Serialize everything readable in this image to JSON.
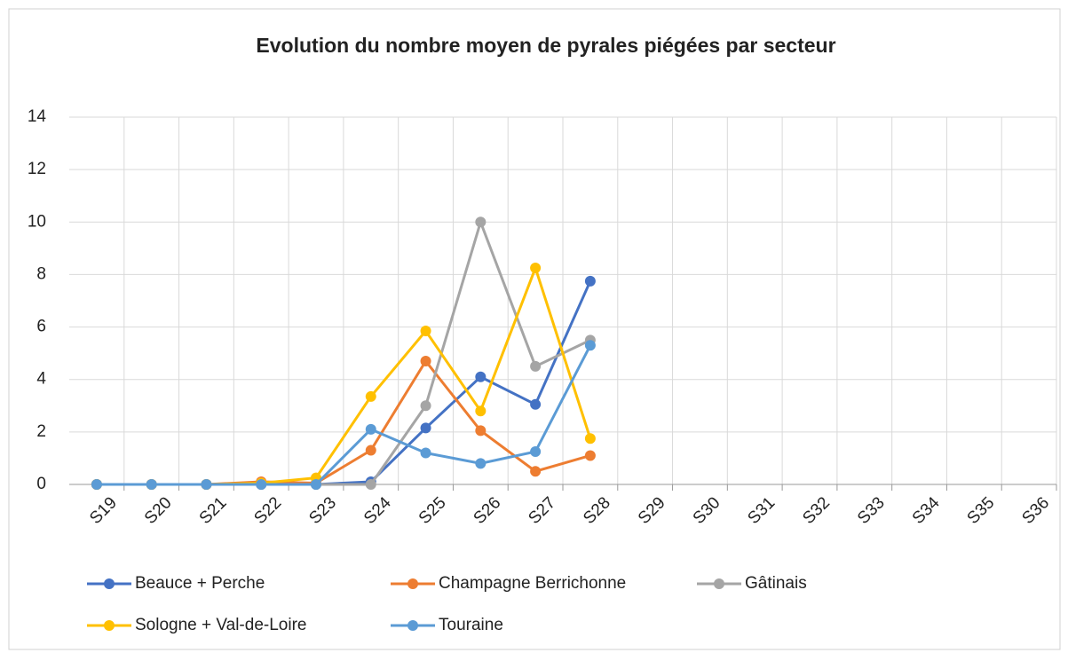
{
  "chart_data": {
    "type": "line",
    "title": "Evolution du nombre moyen de pyrales piégées par secteur",
    "categories": [
      "S19",
      "S20",
      "S21",
      "S22",
      "S23",
      "S24",
      "S25",
      "S26",
      "S27",
      "S28",
      "S29",
      "S30",
      "S31",
      "S32",
      "S33",
      "S34",
      "S35",
      "S36"
    ],
    "series": [
      {
        "name": "Beauce + Perche",
        "color": "#4472c4",
        "values": [
          0,
          0,
          0,
          0,
          0,
          0.1,
          2.15,
          4.1,
          3.05,
          7.75,
          null,
          null,
          null,
          null,
          null,
          null,
          null,
          null
        ]
      },
      {
        "name": "Champagne Berrichonne",
        "color": "#ed7d31",
        "values": [
          0,
          0,
          0,
          0.1,
          0.05,
          1.3,
          4.7,
          2.05,
          0.5,
          1.1,
          null,
          null,
          null,
          null,
          null,
          null,
          null,
          null
        ]
      },
      {
        "name": "Gâtinais",
        "color": "#a5a5a5",
        "values": [
          0,
          0,
          0,
          0,
          0,
          0,
          3,
          10,
          4.5,
          5.5,
          null,
          null,
          null,
          null,
          null,
          null,
          null,
          null
        ]
      },
      {
        "name": "Sologne + Val-de-Loire",
        "color": "#ffc000",
        "values": [
          0,
          0,
          0,
          0.05,
          0.25,
          3.35,
          5.85,
          2.8,
          8.25,
          1.75,
          null,
          null,
          null,
          null,
          null,
          null,
          null,
          null
        ]
      },
      {
        "name": "Touraine",
        "color": "#5b9bd5",
        "values": [
          0,
          0,
          0,
          0,
          0,
          2.1,
          1.2,
          0.8,
          1.25,
          5.3,
          null,
          null,
          null,
          null,
          null,
          null,
          null,
          null
        ]
      }
    ],
    "ylim": [
      0,
      14
    ],
    "yticks": [
      0,
      2,
      4,
      6,
      8,
      10,
      12,
      14
    ],
    "grid": true,
    "legend": "bottom"
  }
}
